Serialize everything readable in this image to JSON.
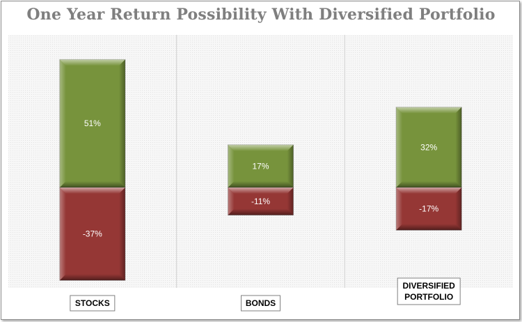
{
  "title": "One Year Return Possibility With Diversified Portfolio",
  "colors": {
    "gain": "#77933C",
    "loss": "#953735",
    "panel": "#f2f2f2"
  },
  "chart_data": {
    "type": "bar",
    "stacked": true,
    "categories": [
      "STOCKS",
      "BONDS",
      "DIVERSIFIED\nPORTFOLIO"
    ],
    "series": [
      {
        "values": [
          51,
          17,
          32
        ],
        "labels": [
          "51%",
          "17%",
          "32%"
        ]
      },
      {
        "values": [
          -37,
          -11,
          -17
        ],
        "labels": [
          "-37%",
          "-11%",
          "-17%"
        ]
      }
    ],
    "xlabel": "",
    "ylabel": "",
    "ylim": [
      -45,
      60
    ],
    "grid": false,
    "legend": "none"
  }
}
